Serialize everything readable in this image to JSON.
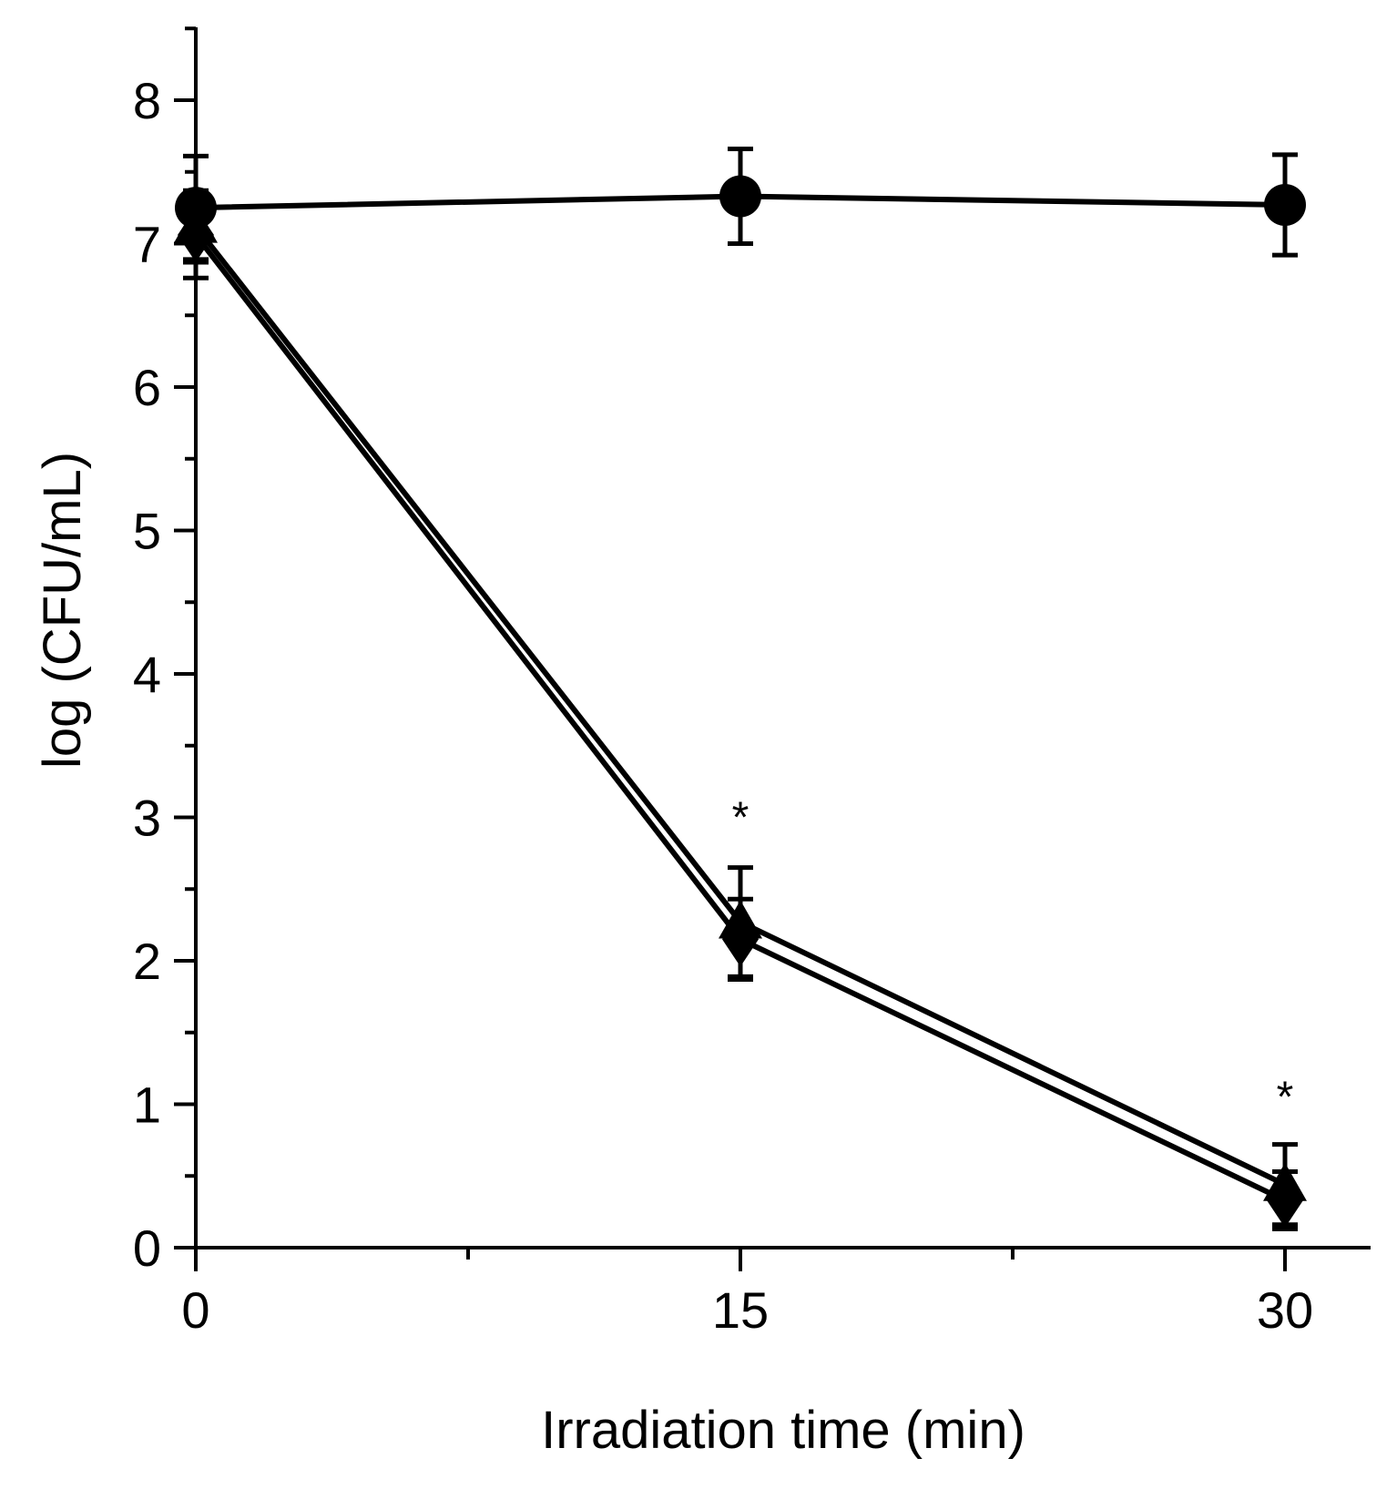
{
  "chart_data": {
    "type": "line",
    "title": "",
    "xlabel": "Irradiation time (min)",
    "ylabel": "log (CFU/mL)",
    "xlim": [
      0,
      32.5
    ],
    "ylim": [
      0,
      8.5
    ],
    "x_ticks": [
      0,
      15,
      30
    ],
    "x_tick_labels": [
      "0",
      "15",
      "30"
    ],
    "x_minor_ticks": [
      7.5,
      22.5
    ],
    "y_ticks": [
      0,
      1,
      2,
      3,
      4,
      5,
      6,
      7,
      8
    ],
    "y_tick_labels": [
      "0",
      "1",
      "2",
      "3",
      "4",
      "5",
      "6",
      "7",
      "8"
    ],
    "y_minor_ticks": [
      0.5,
      1.5,
      2.5,
      3.5,
      4.5,
      5.5,
      6.5,
      7.5,
      8.5
    ],
    "grid": false,
    "x": [
      0,
      15,
      30
    ],
    "series": [
      {
        "name": "circle series",
        "marker": "circle",
        "values": [
          7.25,
          7.33,
          7.27
        ],
        "errors": [
          0.36,
          0.33,
          0.35
        ]
      },
      {
        "name": "triangle series",
        "marker": "triangle",
        "values": [
          7.12,
          2.27,
          0.44
        ],
        "errors": [
          0.25,
          0.38,
          0.28
        ]
      },
      {
        "name": "diamond series",
        "marker": "diamond",
        "values": [
          7.06,
          2.15,
          0.33
        ],
        "errors": [
          0.3,
          0.28,
          0.2
        ]
      }
    ],
    "annotations": [
      {
        "text": "*",
        "x": 15,
        "y": 3.0
      },
      {
        "text": "*",
        "x": 30,
        "y": 1.05
      }
    ]
  }
}
